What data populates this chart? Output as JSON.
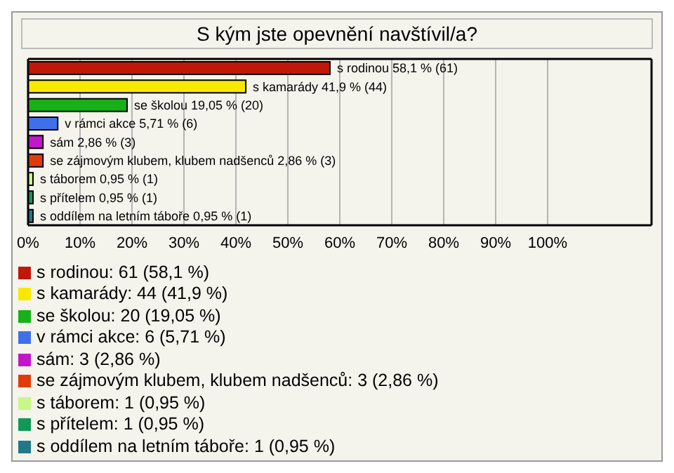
{
  "chart_data": {
    "type": "bar",
    "orientation": "horizontal",
    "stacked": true,
    "title": "S kým jste opevnění navštívil/a?",
    "categories": [
      null,
      null,
      null,
      null,
      null,
      null,
      null,
      null,
      null
    ],
    "series": [
      {
        "name": "s rodinou: 61 (58,1 %)",
        "color": "#c01808",
        "values": [
          58.1,
          null,
          null,
          null,
          null,
          null,
          null,
          null,
          null
        ],
        "value_labels": [
          "s rodinou 58,1 % (61)",
          null,
          null,
          null,
          null,
          null,
          null,
          null,
          null
        ]
      },
      {
        "name": "s kamarády: 44 (41,9 %)",
        "color": "#f8e800",
        "values": [
          null,
          41.9,
          null,
          null,
          null,
          null,
          null,
          null,
          null
        ],
        "value_labels": [
          null,
          "s kamarády 41,9 % (44)",
          null,
          null,
          null,
          null,
          null,
          null,
          null
        ]
      },
      {
        "name": "se školou: 20 (19,05 %)",
        "color": "#18b018",
        "values": [
          null,
          null,
          19.05,
          null,
          null,
          null,
          null,
          null,
          null
        ],
        "value_labels": [
          null,
          null,
          "se školou 19,05 % (20)",
          null,
          null,
          null,
          null,
          null,
          null
        ]
      },
      {
        "name": "v rámci akce: 6 (5,71 %)",
        "color": "#4070e8",
        "values": [
          null,
          null,
          null,
          5.71,
          null,
          null,
          null,
          null,
          null
        ],
        "value_labels": [
          null,
          null,
          null,
          "v rámci akce 5,71 % (6)",
          null,
          null,
          null,
          null,
          null
        ]
      },
      {
        "name": "sám: 3 (2,86 %)",
        "color": "#c018c8",
        "values": [
          null,
          null,
          null,
          null,
          2.86,
          null,
          null,
          null,
          null
        ],
        "value_labels": [
          null,
          null,
          null,
          null,
          "sám 2,86 % (3)",
          null,
          null,
          null,
          null
        ]
      },
      {
        "name": "se zájmovým klubem, klubem nadšenců: 3 (2,86 %)",
        "color": "#e03c08",
        "values": [
          null,
          null,
          null,
          null,
          null,
          2.86,
          null,
          null,
          null
        ],
        "value_labels": [
          null,
          null,
          null,
          null,
          null,
          "se zájmovým klubem, klubem nadšenců 2,86 % (3)",
          null,
          null,
          null
        ]
      },
      {
        "name": "s táborem: 1 (0,95 %)",
        "color": "#c8f888",
        "values": [
          null,
          null,
          null,
          null,
          null,
          null,
          0.95,
          null,
          null
        ],
        "value_labels": [
          null,
          null,
          null,
          null,
          null,
          null,
          "s táborem 0,95 % (1)",
          null,
          null
        ]
      },
      {
        "name": "s přítelem: 1 (0,95 %)",
        "color": "#109858",
        "values": [
          null,
          null,
          null,
          null,
          null,
          null,
          null,
          0.95,
          null
        ],
        "value_labels": [
          null,
          null,
          null,
          null,
          null,
          null,
          null,
          "s přítelem 0,95 % (1)",
          null
        ]
      },
      {
        "name": "s oddílem na letním táboře: 1 (0,95 %)",
        "color": "#207888",
        "values": [
          null,
          null,
          null,
          null,
          null,
          null,
          null,
          null,
          0.95
        ],
        "value_labels": [
          null,
          null,
          null,
          null,
          null,
          null,
          null,
          null,
          "s oddílem na letním táboře 0,95 % (1)"
        ]
      }
    ],
    "xlim": [
      0,
      120
    ],
    "xticks": [
      {
        "value": 0,
        "label": "0%"
      },
      {
        "value": 10,
        "label": "10%"
      },
      {
        "value": 20,
        "label": "20%"
      },
      {
        "value": 30,
        "label": "30%"
      },
      {
        "value": 40,
        "label": "40%"
      },
      {
        "value": 50,
        "label": "50%"
      },
      {
        "value": 60,
        "label": "60%"
      },
      {
        "value": 70,
        "label": "70%"
      },
      {
        "value": 80,
        "label": "80%"
      },
      {
        "value": 90,
        "label": "90%"
      },
      {
        "value": 100,
        "label": "100%"
      }
    ],
    "grid": "x",
    "legend": "bottom",
    "tick_labels": "x"
  }
}
